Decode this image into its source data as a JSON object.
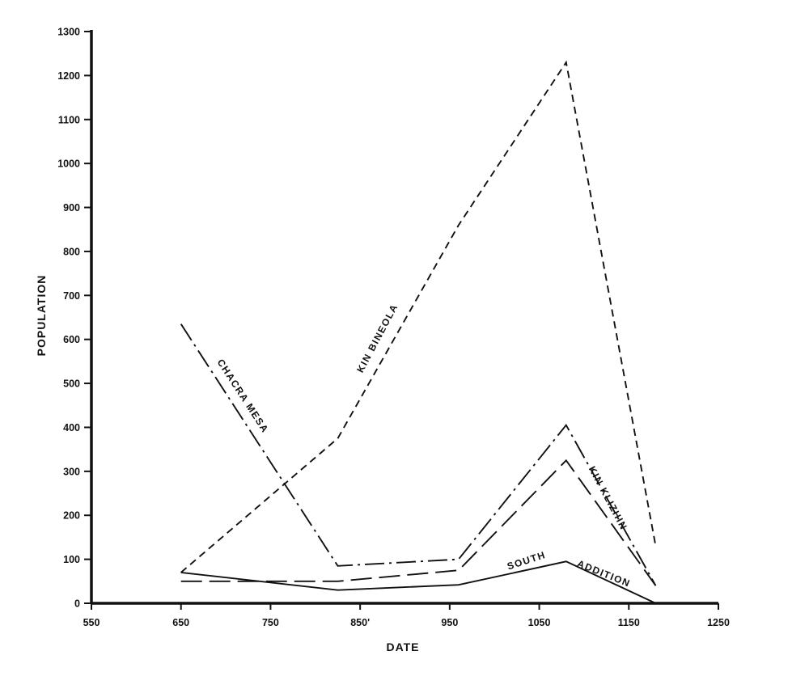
{
  "chart_data": {
    "type": "line",
    "title": "",
    "xlabel": "DATE",
    "ylabel": "POPULATION",
    "xlim": [
      550,
      1250
    ],
    "ylim": [
      0,
      1300
    ],
    "x_ticks": [
      550,
      650,
      750,
      850,
      950,
      1050,
      1150,
      1250
    ],
    "x_tick_labels": [
      "550",
      "650",
      "750",
      "850'",
      "950",
      "1050",
      "1150",
      "1250"
    ],
    "y_ticks": [
      0,
      100,
      200,
      300,
      400,
      500,
      600,
      700,
      800,
      900,
      1000,
      1100,
      1200,
      1300
    ],
    "grid": false,
    "legend": "none",
    "series": [
      {
        "name": "KIN BINEOLA",
        "line_style": "short-dash",
        "points": [
          [
            650,
            70
          ],
          [
            825,
            375
          ],
          [
            960,
            860
          ],
          [
            1080,
            1230
          ],
          [
            1180,
            130
          ]
        ]
      },
      {
        "name": "CHACRA MESA",
        "line_style": "dash-dot",
        "points": [
          [
            650,
            635
          ],
          [
            825,
            85
          ],
          [
            960,
            100
          ],
          [
            1080,
            405
          ],
          [
            1180,
            40
          ]
        ]
      },
      {
        "name": "KIN KLIZHIN",
        "line_style": "long-dash",
        "points": [
          [
            650,
            50
          ],
          [
            825,
            50
          ],
          [
            960,
            75
          ],
          [
            1080,
            325
          ],
          [
            1180,
            40
          ]
        ]
      },
      {
        "name": "SOUTH ADDITION",
        "line_style": "solid",
        "points": [
          [
            650,
            70
          ],
          [
            825,
            30
          ],
          [
            960,
            42
          ],
          [
            1080,
            95
          ],
          [
            1180,
            0
          ]
        ]
      }
    ],
    "annotations": [
      {
        "series": "CHACRA MESA",
        "text": "CHACRA MESA"
      },
      {
        "series": "KIN BINEOLA",
        "text": "KIN BINEOLA"
      },
      {
        "series": "KIN KLIZHIN",
        "text": "KIN KLIZHIN"
      },
      {
        "series": "SOUTH ADDITION",
        "text": "SOUTH"
      },
      {
        "series": "SOUTH ADDITION",
        "text": "ADDITION"
      }
    ]
  }
}
